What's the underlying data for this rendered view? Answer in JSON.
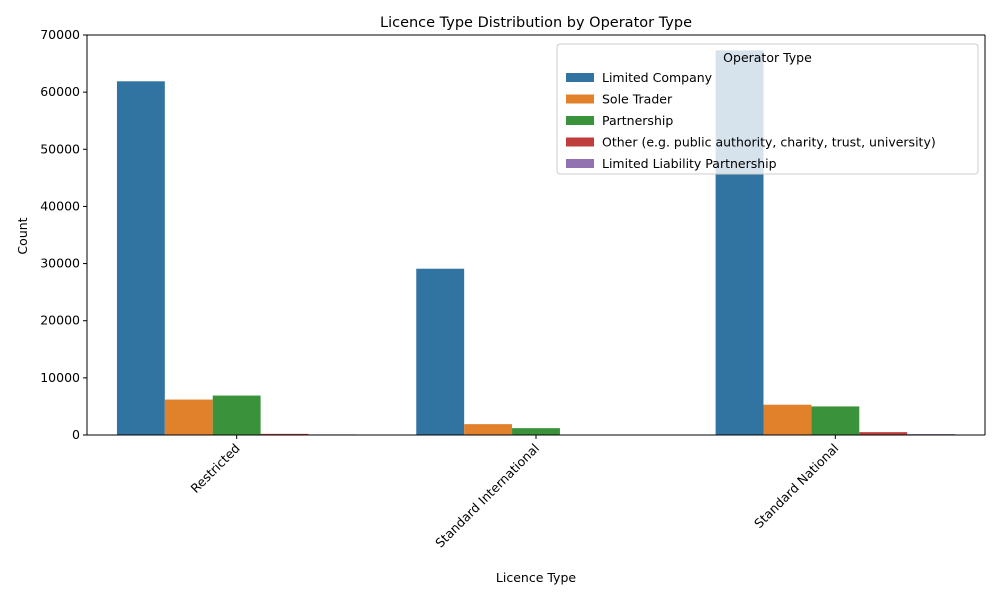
{
  "chart_data": {
    "type": "bar",
    "title": "Licence Type Distribution by Operator Type",
    "xlabel": "Licence Type",
    "ylabel": "Count",
    "ylim": [
      0,
      70000
    ],
    "yticks": [
      0,
      10000,
      20000,
      30000,
      40000,
      50000,
      60000,
      70000
    ],
    "categories": [
      "Restricted",
      "Standard International",
      "Standard National"
    ],
    "legend": {
      "title": "Operator Type",
      "placement": "top-right"
    },
    "series": [
      {
        "name": "Limited Company",
        "color": "#3274a1",
        "values": [
          61900,
          29100,
          67300
        ]
      },
      {
        "name": "Sole Trader",
        "color": "#e1812c",
        "values": [
          6200,
          1900,
          5300
        ]
      },
      {
        "name": "Partnership",
        "color": "#3a923a",
        "values": [
          6900,
          1200,
          5000
        ]
      },
      {
        "name": "Other (e.g. public authority, charity, trust, university)",
        "color": "#c03d3e",
        "values": [
          200,
          50,
          500
        ]
      },
      {
        "name": "Limited Liability Partnership",
        "color": "#9372b2",
        "values": [
          100,
          30,
          150
        ]
      }
    ]
  }
}
